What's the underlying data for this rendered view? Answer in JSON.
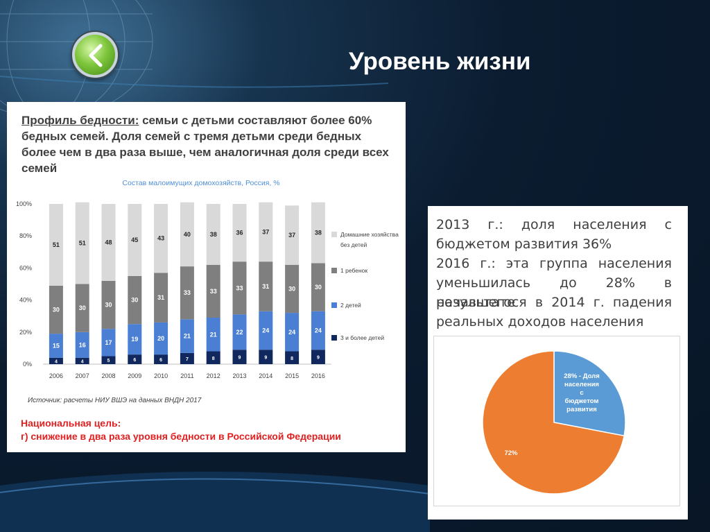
{
  "slide": {
    "title": "Уровень жизни"
  },
  "left_panel": {
    "heading_lead": "Профиль бедности:",
    "heading_rest": " семьи с детьми составляют более 60% бедных семей. Доля семей с тремя детьми среди бедных более чем в два раза выше, чем аналогичная доля среди всех семей",
    "source_note": "Источник: расчеты НИУ ВШЭ на данных ВНДН 2017",
    "goal_label": "Национальная цель:",
    "goal_text": "г) снижение в два раза уровня бедности в Российской Федерации"
  },
  "right_panel": {
    "text_line_1": "2013 г.: доля населения с",
    "text_line_2": "бюджетом развития 36%",
    "text_line_3": "2016 г.: эта группа населения",
    "text_line_4": "уменьшилась до 28% в результате",
    "text_line_5": "начавшегося в 2014 г. падения",
    "text_line_6": "реальных доходов населения"
  },
  "chart_data": [
    {
      "type": "bar",
      "stacked": true,
      "title": "Состав малоимущих домохозяйств, Россия, %",
      "categories": [
        "2006",
        "2007",
        "2008",
        "2009",
        "2010",
        "2011",
        "2012",
        "2013",
        "2014",
        "2015",
        "2016"
      ],
      "y_ticks": [
        "0%",
        "20%",
        "40%",
        "60%",
        "80%",
        "100%"
      ],
      "ylim": [
        0,
        100
      ],
      "legend_position": "right",
      "series": [
        {
          "name": "3 и более детей",
          "color": "#10285e",
          "values": [
            4,
            4,
            5,
            6,
            6,
            7,
            8,
            9,
            9,
            8,
            9
          ]
        },
        {
          "name": "2 детей",
          "color": "#4a7fd4",
          "values": [
            15,
            16,
            17,
            19,
            20,
            21,
            21,
            22,
            24,
            24,
            24
          ]
        },
        {
          "name": "1 ребенок",
          "color": "#7f7f7f",
          "values": [
            30,
            30,
            30,
            30,
            31,
            33,
            33,
            33,
            31,
            30,
            30
          ]
        },
        {
          "name": "Домашние хозяйства без детей",
          "color": "#d9d9d9",
          "values": [
            51,
            51,
            48,
            45,
            43,
            40,
            38,
            36,
            37,
            37,
            38
          ]
        }
      ]
    },
    {
      "type": "pie",
      "slices": [
        {
          "label": "28% - Доля населения с бюджетом развития",
          "value": 28,
          "color": "#5b9bd5"
        },
        {
          "label": "72%",
          "value": 72,
          "color": "#ed7d31"
        }
      ]
    }
  ]
}
